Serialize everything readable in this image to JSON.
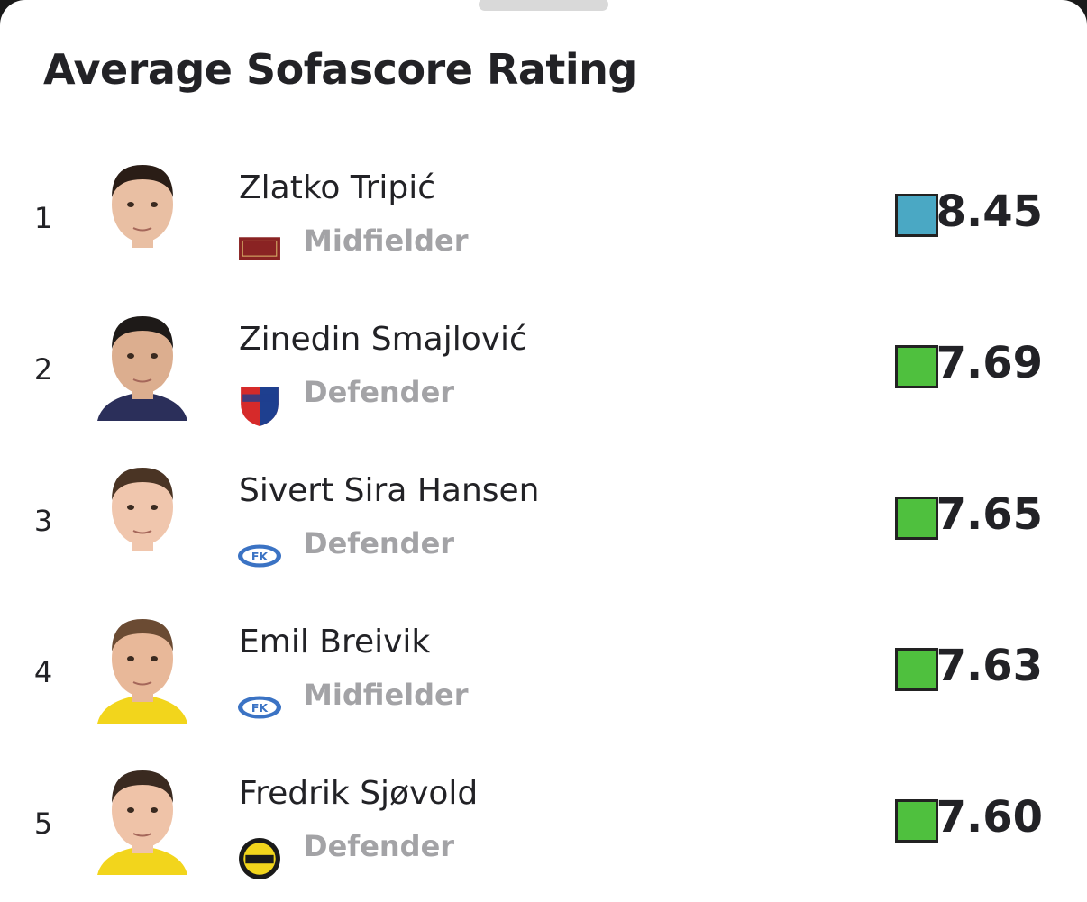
{
  "header": {
    "title": "Average Sofascore Rating"
  },
  "players": [
    {
      "rank": 1,
      "name": "Zlatko Tripić",
      "position": "Midfielder",
      "rating": "8.45",
      "badge_color": "#4aa8c4"
    },
    {
      "rank": 2,
      "name": "Zinedin Smajlović",
      "position": "Defender",
      "rating": "7.69",
      "badge_color": "#4fc03e"
    },
    {
      "rank": 3,
      "name": "Sivert Sira Hansen",
      "position": "Defender",
      "rating": "7.65",
      "badge_color": "#4fc03e"
    },
    {
      "rank": 4,
      "name": "Emil Breivik",
      "position": "Midfielder",
      "rating": "7.63",
      "badge_color": "#4fc03e"
    },
    {
      "rank": 5,
      "name": "Fredrik Sjøvold",
      "position": "Defender",
      "rating": "7.60",
      "badge_color": "#4fc03e"
    }
  ]
}
